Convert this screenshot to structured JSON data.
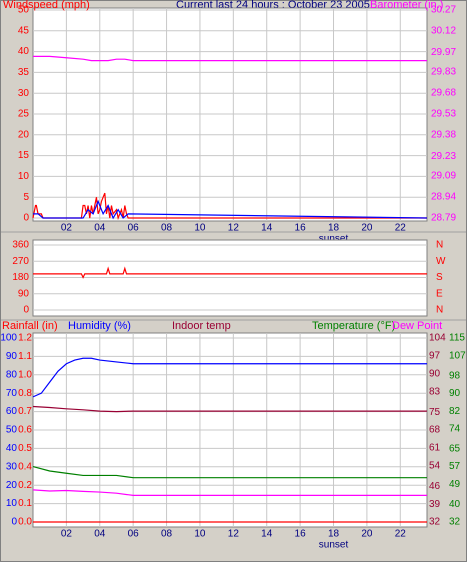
{
  "chart_data": [
    {
      "type": "line",
      "title": "Current last 24 hours : October 23 2005",
      "xlim": [
        0,
        23.6
      ],
      "xticks": [
        {
          "value": 2,
          "label": "02"
        },
        {
          "value": 4,
          "label": "04"
        },
        {
          "value": 6,
          "label": "06"
        },
        {
          "value": 8,
          "label": "08"
        },
        10,
        12,
        14,
        16,
        18,
        20,
        22
      ],
      "annotations": [
        {
          "text": "sunset",
          "x": 18
        }
      ],
      "ylim": [
        0,
        50
      ],
      "yticks": [
        0,
        5,
        10,
        15,
        20,
        25,
        30,
        35,
        40,
        45,
        50
      ],
      "y2lim": [
        28.79,
        30.27
      ],
      "y2ticks": [
        28.79,
        28.94,
        29.09,
        29.23,
        29.38,
        29.53,
        29.68,
        29.83,
        29.97,
        30.12,
        30.27
      ],
      "grid": true,
      "series": [
        {
          "name": "Windspeed (mph)",
          "color": "#ff0000",
          "x": [
            0,
            0.15,
            0.2,
            0.3,
            0.35,
            0.45,
            0.5,
            0.6,
            0.7,
            2.9,
            3.0,
            3.1,
            3.2,
            3.3,
            3.4,
            3.5,
            3.6,
            3.8,
            3.9,
            4.0,
            4.1,
            4.3,
            4.4,
            4.5,
            4.6,
            4.7,
            4.8,
            5.0,
            5.1,
            5.3,
            5.4,
            5.5,
            5.6,
            5.7,
            23.6
          ],
          "values": [
            0,
            3,
            3,
            1,
            1,
            1,
            1,
            0,
            0,
            0,
            3,
            3,
            1,
            3,
            0,
            3,
            1,
            5,
            1,
            2,
            4,
            6,
            1,
            3,
            0,
            3,
            1,
            2,
            0,
            2,
            0,
            3,
            1,
            0,
            0
          ]
        },
        {
          "color": "#0000ff",
          "x": [
            0,
            0.3,
            0.6,
            3.0,
            3.3,
            3.6,
            3.9,
            4.2,
            4.5,
            4.8,
            5.1,
            5.4,
            5.7,
            23.6
          ],
          "values": [
            1,
            1,
            0,
            0,
            2,
            1,
            4,
            1,
            3,
            0,
            2,
            0,
            1,
            0
          ]
        },
        {
          "name": "Barometer (in.)",
          "color": "#ff00ff",
          "axis": "y2",
          "x": [
            0,
            1,
            2,
            3,
            3.5,
            4,
            4.5,
            5,
            5.5,
            6,
            23.6
          ],
          "values": [
            29.94,
            29.94,
            29.93,
            29.92,
            29.91,
            29.91,
            29.91,
            29.92,
            29.92,
            29.91,
            29.91
          ]
        }
      ]
    },
    {
      "type": "line",
      "xlim": [
        0,
        23.6
      ],
      "ylim": [
        0,
        360
      ],
      "yticks": [
        0,
        90,
        180,
        270,
        360
      ],
      "y2lim": [
        0,
        360
      ],
      "y2ticks": [
        {
          "value": 0,
          "label": "N"
        },
        {
          "value": 90,
          "label": "E"
        },
        {
          "value": 180,
          "label": "S"
        },
        {
          "value": 270,
          "label": "W"
        },
        {
          "value": 360,
          "label": "N"
        }
      ],
      "grid": true,
      "series": [
        {
          "color": "#ff0000",
          "x": [
            0,
            2.9,
            3.0,
            3.1,
            4.4,
            4.5,
            4.6,
            5.4,
            5.5,
            5.6,
            23.6
          ],
          "values": [
            200,
            200,
            180,
            200,
            200,
            230,
            200,
            200,
            230,
            200,
            200
          ]
        }
      ]
    },
    {
      "type": "line",
      "xlim": [
        0,
        23.6
      ],
      "xticks": [
        {
          "value": 2,
          "label": "02"
        },
        {
          "value": 4,
          "label": "04"
        },
        {
          "value": 6,
          "label": "06"
        },
        {
          "value": 8,
          "label": "08"
        },
        10,
        12,
        14,
        16,
        18,
        20,
        22
      ],
      "annotations": [
        {
          "text": "sunset",
          "x": 18
        }
      ],
      "ylim": [
        0,
        100
      ],
      "yticks": [
        0,
        10,
        20,
        30,
        40,
        50,
        60,
        70,
        80,
        90,
        100
      ],
      "y2lim": [
        32,
        104
      ],
      "y2ticks": [
        32,
        39,
        46,
        54,
        61,
        68,
        75,
        83,
        90,
        97,
        104
      ],
      "y3lim": [
        32,
        115
      ],
      "y3ticks": [
        32,
        40,
        49,
        57,
        65,
        74,
        82,
        90,
        98,
        107,
        115
      ],
      "y4lim": [
        0,
        1.2
      ],
      "y4ticks": [
        {
          "value": 0,
          "label": "0.0"
        },
        {
          "value": 0.12,
          "label": "0.1"
        },
        {
          "value": 0.24,
          "label": "0.2"
        },
        {
          "value": 0.36,
          "label": "0.4"
        },
        {
          "value": 0.48,
          "label": "0.5"
        },
        {
          "value": 0.6,
          "label": "0.6"
        },
        {
          "value": 0.72,
          "label": "0.7"
        },
        {
          "value": 0.84,
          "label": "0.8"
        },
        {
          "value": 0.96,
          "label": "1.0"
        },
        {
          "value": 1.08,
          "label": "1.1"
        },
        {
          "value": 1.2,
          "label": "1.2"
        }
      ],
      "grid": true,
      "series": [
        {
          "name": "Rainfall (in)",
          "color": "#ff0000",
          "axis": "y4",
          "x": [
            0,
            23.6
          ],
          "values": [
            0,
            0
          ]
        },
        {
          "name": "Humidity (%)",
          "color": "#0000ff",
          "axis": "y",
          "x": [
            0,
            0.5,
            1,
            1.5,
            2,
            2.5,
            3,
            3.5,
            4,
            5,
            6,
            23.6
          ],
          "values": [
            68,
            70,
            76,
            82,
            86,
            88,
            89,
            89,
            88,
            87,
            86,
            86
          ]
        },
        {
          "name": "Indoor temp",
          "color": "#990033",
          "axis": "y2",
          "x": [
            0,
            1,
            2,
            3,
            4,
            5,
            6,
            23.6
          ],
          "values": [
            77.2,
            76.8,
            76.3,
            75.9,
            75.4,
            75.2,
            75.4,
            75.4
          ]
        },
        {
          "name": "Temperature (°F)",
          "color": "#008000",
          "axis": "y3",
          "x": [
            0,
            1,
            2,
            3,
            4,
            5,
            6,
            23.6
          ],
          "values": [
            57,
            55,
            54,
            53,
            53,
            53,
            52,
            52
          ]
        },
        {
          "name": "Dew Point",
          "color": "#ff00ff",
          "axis": "y3",
          "x": [
            0,
            1,
            2,
            3,
            4,
            5,
            6,
            23.6
          ],
          "values": [
            46.5,
            46,
            46.2,
            45.8,
            45.5,
            45,
            44,
            44
          ]
        }
      ]
    }
  ]
}
